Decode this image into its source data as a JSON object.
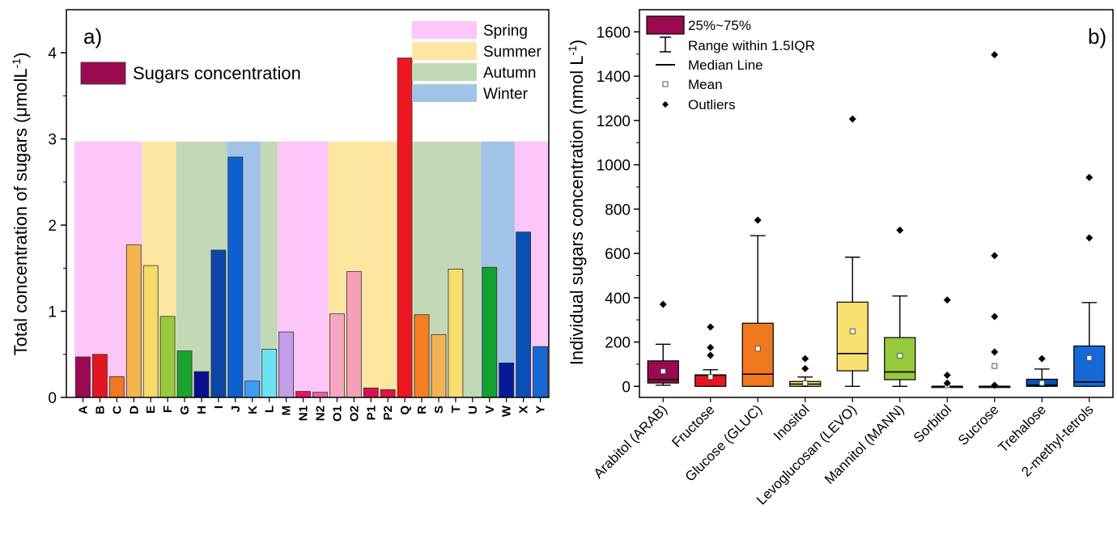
{
  "chart_data": [
    {
      "type": "bar",
      "panel_label": "a)",
      "ylabel": "Total concentration of sugars (μmolL",
      "ylabel_sup": "-1",
      "ylabel_close": ")",
      "ylim": [
        0,
        4.5
      ],
      "yticks": [
        "0",
        "1",
        "2",
        "3",
        "4"
      ],
      "bands_top": 2.97,
      "series_legend": "Sugars concentration",
      "series_legend_color": "#9b0a4e",
      "seasons": [
        {
          "name": "Spring",
          "color": "#fdc6f8"
        },
        {
          "name": "Summer",
          "color": "#fce6a0"
        },
        {
          "name": "Autumn",
          "color": "#c3d9b6"
        },
        {
          "name": "Winter",
          "color": "#a1c3e8"
        }
      ],
      "season_bands": [
        {
          "season": 0,
          "from": 0,
          "to": 4
        },
        {
          "season": 1,
          "from": 4,
          "to": 6
        },
        {
          "season": 2,
          "from": 6,
          "to": 9
        },
        {
          "season": 3,
          "from": 9,
          "to": 11
        },
        {
          "season": 2,
          "from": 11,
          "to": 12
        },
        {
          "season": 0,
          "from": 12,
          "to": 15
        },
        {
          "season": 1,
          "from": 15,
          "to": 20
        },
        {
          "season": 2,
          "from": 20,
          "to": 24
        },
        {
          "season": 3,
          "from": 24,
          "to": 26
        },
        {
          "season": 0,
          "from": 26,
          "to": 28
        }
      ],
      "categories": [
        "A",
        "B",
        "C",
        "D",
        "E",
        "F",
        "G",
        "H",
        "I",
        "J",
        "K",
        "L",
        "M",
        "N1",
        "N2",
        "O1",
        "O2",
        "P1",
        "P2",
        "Q",
        "R",
        "S",
        "T",
        "U",
        "V",
        "W",
        "X",
        "Y"
      ],
      "values": [
        0.47,
        0.5,
        0.24,
        1.77,
        1.53,
        0.94,
        0.54,
        0.3,
        1.71,
        2.79,
        0.19,
        0.56,
        0.76,
        0.07,
        0.06,
        0.97,
        1.46,
        0.11,
        0.09,
        3.94,
        0.96,
        0.73,
        1.49,
        0,
        1.51,
        0.4,
        1.92,
        0.59
      ],
      "colors": [
        "#9b0a4e",
        "#e4151d",
        "#f07820",
        "#f5b54b",
        "#f6da6a",
        "#96c93c",
        "#1aa32e",
        "#08108e",
        "#0c46a8",
        "#0e5fd2",
        "#3a9ff0",
        "#6be3f5",
        "#c39ee8",
        "#e8126a",
        "#f25ea2",
        "#f7a5c2",
        "#f5a0b8",
        "#d8105a",
        "#e0124a",
        "#ec1720",
        "#f57f20",
        "#f4b256",
        "#f8dc70",
        "#b7d94e",
        "#12a02e",
        "#071a94",
        "#0a4fb8",
        "#1668d6"
      ]
    },
    {
      "type": "box",
      "panel_label": "b)",
      "ylabel": "Individual sugars concentration (nmol L",
      "ylabel_sup": "-1",
      "ylabel_close": ")",
      "ylim": [
        -50,
        1700
      ],
      "yticks": [
        "0",
        "200",
        "400",
        "600",
        "800",
        "1000",
        "1200",
        "1400",
        "1600"
      ],
      "legend": {
        "box": "25%~75%",
        "whisker": "Range within 1.5IQR",
        "median": "Median Line",
        "mean": "Mean",
        "outliers": "Outliers"
      },
      "categories": [
        "Arabitol (ARAB)",
        "Fructose",
        "Glucose (GLUC)",
        "Inositol",
        "Levoglucosan (LEVO)",
        "Mannitol (MANN)",
        "Sorbitol",
        "Sucrose",
        "Trehalose",
        "2-methyl-tetrols"
      ],
      "boxes": [
        {
          "q1": 15,
          "median": 30,
          "q3": 115,
          "low": 5,
          "high": 190,
          "mean": 68,
          "color": "#9b0a4e",
          "outliers": [
            370
          ]
        },
        {
          "q1": 0,
          "median": 50,
          "q3": 52,
          "low": 0,
          "high": 75,
          "mean": 42,
          "color": "#e4151d",
          "outliers": [
            140,
            175,
            268
          ]
        },
        {
          "q1": 0,
          "median": 55,
          "q3": 285,
          "low": 0,
          "high": 680,
          "mean": 170,
          "color": "#f07820",
          "outliers": [
            750
          ]
        },
        {
          "q1": 0,
          "median": 10,
          "q3": 22,
          "low": 0,
          "high": 42,
          "mean": 14,
          "color": "#f6da6a",
          "outliers": [
            80,
            125
          ]
        },
        {
          "q1": 70,
          "median": 148,
          "q3": 380,
          "low": 0,
          "high": 583,
          "mean": 248,
          "color": "#f8e070",
          "outliers": [
            1207
          ]
        },
        {
          "q1": 30,
          "median": 65,
          "q3": 220,
          "low": 0,
          "high": 408,
          "mean": 138,
          "color": "#96c93c",
          "outliers": [
            705
          ]
        },
        {
          "q1": 0,
          "median": 0,
          "q3": 0,
          "low": 0,
          "high": 0,
          "mean": 5,
          "color": "#1aa32e",
          "outliers": [
            15,
            50,
            390
          ]
        },
        {
          "q1": 0,
          "median": 0,
          "q3": 0,
          "low": 0,
          "high": 0,
          "mean": 92,
          "color": "#1668d6",
          "outliers": [
            5,
            155,
            315,
            590,
            1497
          ]
        },
        {
          "q1": 0,
          "median": 5,
          "q3": 32,
          "low": 0,
          "high": 78,
          "mean": 15,
          "color": "#0a4fb8",
          "outliers": [
            125
          ]
        },
        {
          "q1": 0,
          "median": 20,
          "q3": 182,
          "low": 0,
          "high": 378,
          "mean": 128,
          "color": "#1668d6",
          "outliers": [
            670,
            943
          ]
        }
      ]
    }
  ]
}
